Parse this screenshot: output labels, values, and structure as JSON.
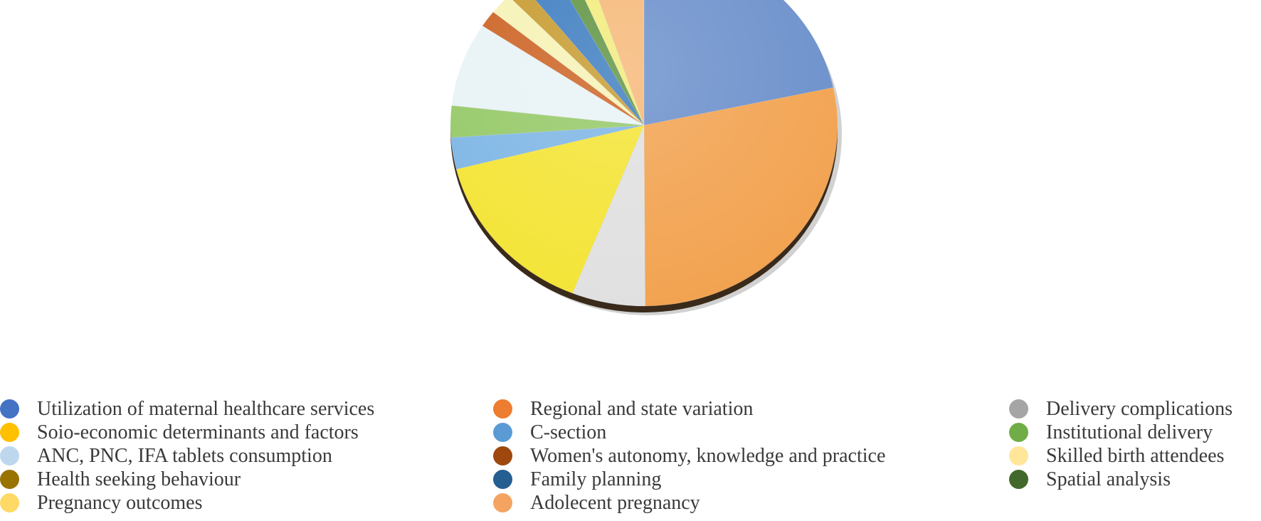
{
  "chart_data": {
    "type": "pie",
    "title": "",
    "series": [
      {
        "name": "Utilization of maternal healthcare services",
        "value": 23.0,
        "color": "#4472C4",
        "slice_color": "#6A8FCB"
      },
      {
        "name": "Regional and state variation",
        "value": 30.0,
        "color": "#ED7D31",
        "slice_color": "#F2A24F"
      },
      {
        "name": "Delivery complications",
        "value": 6.5,
        "color": "#A5A5A5",
        "slice_color": "#E0E0E0"
      },
      {
        "name": "Soio-economic determinants and factors",
        "value": 16.0,
        "color": "#FFC000",
        "slice_color": "#F4E435"
      },
      {
        "name": "C-section",
        "value": 3.0,
        "color": "#5B9BD5",
        "slice_color": "#7EB6E5"
      },
      {
        "name": "Institutional delivery",
        "value": 3.0,
        "color": "#70AD47",
        "slice_color": "#95C967"
      },
      {
        "name": "ANC, PNC, IFA tablets consumption",
        "value": 8.0,
        "color": "#BDD7EE",
        "slice_color": "#E8F3F6"
      },
      {
        "name": "Women's autonomy, knowledge and practice",
        "value": 1.6,
        "color": "#9E480E",
        "slice_color": "#CC6324"
      },
      {
        "name": "Skilled birth attendees",
        "value": 2.0,
        "color": "#FFE699",
        "slice_color": "#F6F2B5"
      },
      {
        "name": "Health seeking behaviour",
        "value": 1.6,
        "color": "#997300",
        "slice_color": "#C79A2E"
      },
      {
        "name": "Family planning",
        "value": 3.0,
        "color": "#255E91",
        "slice_color": "#3C7CC0"
      },
      {
        "name": "Spatial analysis",
        "value": 1.5,
        "color": "#43682B",
        "slice_color": "#5E9342"
      },
      {
        "name": "Pregnancy outcomes",
        "value": 1.5,
        "color": "#FFD966",
        "slice_color": "#F2EB7C"
      },
      {
        "name": "Adolecent pregnancy",
        "value": 5.5,
        "color": "#F4A460",
        "slice_color": "#F6B777"
      }
    ],
    "start_angle_deg": 0,
    "direction": "clockwise-from-top",
    "legend_position": "bottom",
    "legend_rows": [
      [
        "Utilization of maternal healthcare services",
        "Regional and state variation",
        "Delivery complications"
      ],
      [
        "Soio-economic determinants and factors",
        "C-section",
        "Institutional delivery"
      ],
      [
        "ANC, PNC, IFA tablets consumption",
        "Women's autonomy, knowledge and practice",
        "Skilled birth attendees"
      ],
      [
        "Health seeking behaviour",
        "Family planning",
        "Spatial analysis"
      ],
      [
        "Pregnancy outcomes",
        "Adolecent pregnancy"
      ]
    ]
  }
}
